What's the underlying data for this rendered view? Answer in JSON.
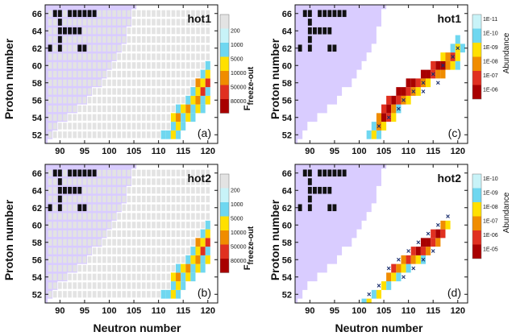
{
  "colors": {
    "shade": "#d9ccff",
    "stable": "#111111",
    "cross": "#1a2e6e",
    "scale_f": [
      "#e3e3e3",
      "#c8f3f8",
      "#6fd7f0",
      "#ffe000",
      "#f08c00",
      "#e03020",
      "#a80000"
    ],
    "scale_a": [
      "#c8f3f8",
      "#6fd7f0",
      "#ffe000",
      "#f08c00",
      "#e03020",
      "#a80000"
    ]
  },
  "axes": {
    "xlabel": "Neutron number",
    "ylabel": "Proton number",
    "xlim": [
      87,
      122
    ],
    "ylim": [
      51,
      67
    ],
    "xticks": [
      "90",
      "95",
      "100",
      "105",
      "110",
      "115",
      "120"
    ],
    "yticks": [
      "52",
      "54",
      "56",
      "58",
      "60",
      "62",
      "64",
      "66"
    ]
  },
  "colorbar_titles": {
    "freeze_main": "F",
    "freeze_sub": "freeze-out",
    "abundance": "Abundance"
  },
  "chart_data": [
    {
      "id": "a",
      "type": "heatmap",
      "label": "(a)",
      "title": "hot1",
      "metric": "F",
      "colorbar": [
        "200",
        "1000",
        "5000",
        "10000",
        "50000",
        "80000"
      ],
      "cells": [
        [
          111,
          52,
          2
        ],
        [
          112,
          52,
          2
        ],
        [
          113,
          52,
          3
        ],
        [
          114,
          52,
          2
        ],
        [
          113,
          53,
          2
        ],
        [
          114,
          53,
          3
        ],
        [
          115,
          53,
          2
        ],
        [
          113,
          54,
          3
        ],
        [
          114,
          54,
          4
        ],
        [
          115,
          54,
          2
        ],
        [
          116,
          54,
          3
        ],
        [
          117,
          54,
          2
        ],
        [
          114,
          55,
          2
        ],
        [
          115,
          55,
          3
        ],
        [
          116,
          55,
          4
        ],
        [
          117,
          55,
          2
        ],
        [
          118,
          55,
          3
        ],
        [
          119,
          55,
          2
        ],
        [
          116,
          56,
          2
        ],
        [
          117,
          56,
          3
        ],
        [
          118,
          56,
          4
        ],
        [
          119,
          56,
          2
        ],
        [
          120,
          56,
          3
        ],
        [
          117,
          57,
          2
        ],
        [
          118,
          57,
          3
        ],
        [
          119,
          57,
          5
        ],
        [
          120,
          57,
          2
        ],
        [
          118,
          58,
          4
        ],
        [
          119,
          58,
          3
        ],
        [
          120,
          58,
          5
        ],
        [
          119,
          59,
          2
        ],
        [
          120,
          59,
          3
        ],
        [
          120,
          60,
          2
        ]
      ],
      "cells_note": "cells are [N, Z, color-index]",
      "stable": [
        [
          89,
          66
        ],
        [
          90,
          66
        ],
        [
          92,
          66
        ],
        [
          93,
          66
        ],
        [
          94,
          66
        ],
        [
          95,
          66
        ],
        [
          96,
          66
        ],
        [
          97,
          66
        ],
        [
          90,
          65
        ],
        [
          90,
          64
        ],
        [
          91,
          64
        ],
        [
          92,
          64
        ],
        [
          93,
          64
        ],
        [
          94,
          64
        ],
        [
          90,
          63
        ],
        [
          88,
          62
        ],
        [
          90,
          62
        ],
        [
          94,
          62
        ],
        [
          95,
          62
        ]
      ]
    },
    {
      "id": "b",
      "type": "heatmap",
      "label": "(b)",
      "title": "hot2",
      "metric": "F",
      "colorbar": [
        "200",
        "1000",
        "5000",
        "10000",
        "50000",
        "80000"
      ],
      "cells": [
        [
          111,
          52,
          2
        ],
        [
          112,
          52,
          2
        ],
        [
          113,
          52,
          3
        ],
        [
          114,
          52,
          2
        ],
        [
          113,
          53,
          2
        ],
        [
          114,
          53,
          3
        ],
        [
          115,
          53,
          2
        ],
        [
          113,
          54,
          3
        ],
        [
          114,
          54,
          4
        ],
        [
          115,
          54,
          2
        ],
        [
          116,
          54,
          3
        ],
        [
          117,
          54,
          2
        ],
        [
          114,
          55,
          2
        ],
        [
          115,
          55,
          3
        ],
        [
          116,
          55,
          4
        ],
        [
          117,
          55,
          2
        ],
        [
          118,
          55,
          3
        ],
        [
          119,
          55,
          2
        ],
        [
          116,
          56,
          2
        ],
        [
          117,
          56,
          3
        ],
        [
          118,
          56,
          4
        ],
        [
          119,
          56,
          2
        ],
        [
          120,
          56,
          3
        ],
        [
          117,
          57,
          2
        ],
        [
          118,
          57,
          3
        ],
        [
          119,
          57,
          5
        ],
        [
          120,
          57,
          2
        ],
        [
          118,
          58,
          4
        ],
        [
          119,
          58,
          3
        ],
        [
          120,
          58,
          5
        ],
        [
          119,
          59,
          2
        ],
        [
          120,
          59,
          3
        ],
        [
          120,
          60,
          2
        ]
      ],
      "cells_note": "cells are [N, Z, color-index]",
      "stable": [
        [
          89,
          66
        ],
        [
          90,
          66
        ],
        [
          92,
          66
        ],
        [
          93,
          66
        ],
        [
          94,
          66
        ],
        [
          95,
          66
        ],
        [
          96,
          66
        ],
        [
          97,
          66
        ],
        [
          90,
          65
        ],
        [
          90,
          64
        ],
        [
          91,
          64
        ],
        [
          92,
          64
        ],
        [
          93,
          64
        ],
        [
          94,
          64
        ],
        [
          90,
          63
        ],
        [
          88,
          62
        ],
        [
          90,
          62
        ],
        [
          94,
          62
        ],
        [
          95,
          62
        ]
      ]
    },
    {
      "id": "c",
      "type": "heatmap",
      "label": "(c)",
      "title": "hot1",
      "metric": "Abundance",
      "colorbar": [
        "1E-11",
        "1E-10",
        "1E-09",
        "1E-08",
        "1E-07",
        "1E-06"
      ],
      "cells": [
        [
          102,
          52,
          1
        ],
        [
          103,
          52,
          2
        ],
        [
          104,
          52,
          1
        ],
        [
          103,
          53,
          1
        ],
        [
          104,
          53,
          3
        ],
        [
          105,
          53,
          2
        ],
        [
          104,
          54,
          3
        ],
        [
          105,
          54,
          5
        ],
        [
          106,
          54,
          4
        ],
        [
          107,
          54,
          2
        ],
        [
          105,
          55,
          4
        ],
        [
          106,
          55,
          5
        ],
        [
          107,
          55,
          3
        ],
        [
          108,
          55,
          1
        ],
        [
          106,
          56,
          4
        ],
        [
          107,
          56,
          5
        ],
        [
          108,
          56,
          4
        ],
        [
          109,
          56,
          3
        ],
        [
          110,
          56,
          2
        ],
        [
          108,
          57,
          5
        ],
        [
          109,
          57,
          5
        ],
        [
          110,
          57,
          4
        ],
        [
          111,
          57,
          3
        ],
        [
          112,
          57,
          2
        ],
        [
          110,
          58,
          5
        ],
        [
          111,
          58,
          5
        ],
        [
          112,
          58,
          4
        ],
        [
          113,
          58,
          3
        ],
        [
          114,
          58,
          2
        ],
        [
          113,
          59,
          5
        ],
        [
          114,
          59,
          5
        ],
        [
          115,
          59,
          4
        ],
        [
          116,
          59,
          3
        ],
        [
          117,
          59,
          3
        ],
        [
          115,
          60,
          4
        ],
        [
          116,
          60,
          5
        ],
        [
          117,
          60,
          5
        ],
        [
          118,
          60,
          3
        ],
        [
          119,
          60,
          2
        ],
        [
          120,
          60,
          1
        ],
        [
          117,
          61,
          2
        ],
        [
          118,
          61,
          3
        ],
        [
          119,
          61,
          4
        ],
        [
          120,
          61,
          2
        ],
        [
          119,
          62,
          1
        ],
        [
          120,
          62,
          2
        ],
        [
          121,
          62,
          1
        ],
        [
          120,
          63,
          1
        ]
      ],
      "cells_note": "cells are [N, Z, color-index]",
      "crosses": [
        [
          104,
          53
        ],
        [
          106,
          54
        ],
        [
          108,
          55
        ],
        [
          109,
          56
        ],
        [
          111,
          57
        ],
        [
          113,
          58
        ],
        [
          115,
          59
        ],
        [
          117,
          60
        ],
        [
          119,
          61
        ],
        [
          120,
          62
        ],
        [
          113,
          57
        ],
        [
          116,
          58
        ]
      ],
      "stable": [
        [
          89,
          66
        ],
        [
          90,
          66
        ],
        [
          92,
          66
        ],
        [
          93,
          66
        ],
        [
          94,
          66
        ],
        [
          95,
          66
        ],
        [
          96,
          66
        ],
        [
          97,
          66
        ],
        [
          90,
          65
        ],
        [
          90,
          64
        ],
        [
          91,
          64
        ],
        [
          92,
          64
        ],
        [
          93,
          64
        ],
        [
          94,
          64
        ],
        [
          90,
          63
        ],
        [
          88,
          62
        ],
        [
          90,
          62
        ],
        [
          94,
          62
        ],
        [
          95,
          62
        ]
      ]
    },
    {
      "id": "d",
      "type": "heatmap",
      "label": "(d)",
      "title": "hot2",
      "metric": "Abundance",
      "colorbar": [
        "1E-10",
        "1E-09",
        "1E-08",
        "1E-07",
        "1E-06",
        "1E-05"
      ],
      "cells": [
        [
          101,
          51,
          1
        ],
        [
          102,
          51,
          2
        ],
        [
          103,
          52,
          1
        ],
        [
          104,
          52,
          2
        ],
        [
          105,
          53,
          2
        ],
        [
          106,
          53,
          1
        ],
        [
          106,
          54,
          3
        ],
        [
          107,
          54,
          2
        ],
        [
          108,
          54,
          1
        ],
        [
          107,
          55,
          4
        ],
        [
          108,
          55,
          3
        ],
        [
          109,
          55,
          2
        ],
        [
          110,
          55,
          1
        ],
        [
          109,
          56,
          3
        ],
        [
          110,
          56,
          4
        ],
        [
          111,
          56,
          3
        ],
        [
          112,
          56,
          2
        ],
        [
          113,
          56,
          1
        ],
        [
          111,
          57,
          4
        ],
        [
          112,
          57,
          5
        ],
        [
          113,
          57,
          4
        ],
        [
          114,
          57,
          3
        ],
        [
          113,
          58,
          5
        ],
        [
          114,
          58,
          5
        ],
        [
          115,
          58,
          4
        ],
        [
          116,
          58,
          3
        ],
        [
          115,
          59,
          4
        ],
        [
          116,
          59,
          5
        ],
        [
          117,
          59,
          4
        ],
        [
          117,
          60,
          3
        ],
        [
          118,
          60,
          2
        ]
      ],
      "cells_note": "cells are [N, Z, color-index]",
      "crosses": [
        [
          102,
          52
        ],
        [
          104,
          53
        ],
        [
          106,
          55
        ],
        [
          108,
          56
        ],
        [
          110,
          57
        ],
        [
          112,
          58
        ],
        [
          114,
          59
        ],
        [
          116,
          60
        ],
        [
          118,
          61
        ],
        [
          109,
          54
        ],
        [
          111,
          55
        ],
        [
          113,
          56
        ],
        [
          115,
          57
        ]
      ],
      "stable": [
        [
          89,
          66
        ],
        [
          90,
          66
        ],
        [
          92,
          66
        ],
        [
          93,
          66
        ],
        [
          94,
          66
        ],
        [
          95,
          66
        ],
        [
          96,
          66
        ],
        [
          97,
          66
        ],
        [
          90,
          65
        ],
        [
          90,
          64
        ],
        [
          91,
          64
        ],
        [
          92,
          64
        ],
        [
          93,
          64
        ],
        [
          94,
          64
        ],
        [
          90,
          63
        ],
        [
          88,
          62
        ],
        [
          90,
          62
        ],
        [
          94,
          62
        ],
        [
          95,
          62
        ]
      ]
    }
  ],
  "shaded_region": {
    "note": "lower neutron boundary per proton number Z is 87; upper boundary N_max per Z",
    "z": [
      51,
      52,
      53,
      54,
      55,
      56,
      57,
      58,
      59,
      60,
      61,
      62,
      63,
      64,
      65,
      66,
      67
    ],
    "n_max": [
      87,
      88,
      89,
      91,
      93,
      95,
      96,
      98,
      99,
      100,
      101,
      102,
      103,
      103,
      104,
      104,
      105
    ]
  },
  "grey_grid": {
    "note": "background grey nuclide cells in panels a and b: for each Z, N runs from lo to hi",
    "rows": [
      [
        52,
        88,
        110
      ],
      [
        53,
        88,
        112
      ],
      [
        54,
        88,
        113
      ],
      [
        55,
        88,
        113
      ],
      [
        56,
        88,
        115
      ],
      [
        57,
        88,
        116
      ],
      [
        58,
        88,
        117
      ],
      [
        59,
        88,
        118
      ],
      [
        60,
        88,
        120
      ],
      [
        61,
        88,
        120
      ],
      [
        62,
        88,
        120
      ],
      [
        63,
        88,
        120
      ],
      [
        64,
        88,
        120
      ],
      [
        65,
        88,
        120
      ],
      [
        66,
        88,
        120
      ]
    ]
  }
}
